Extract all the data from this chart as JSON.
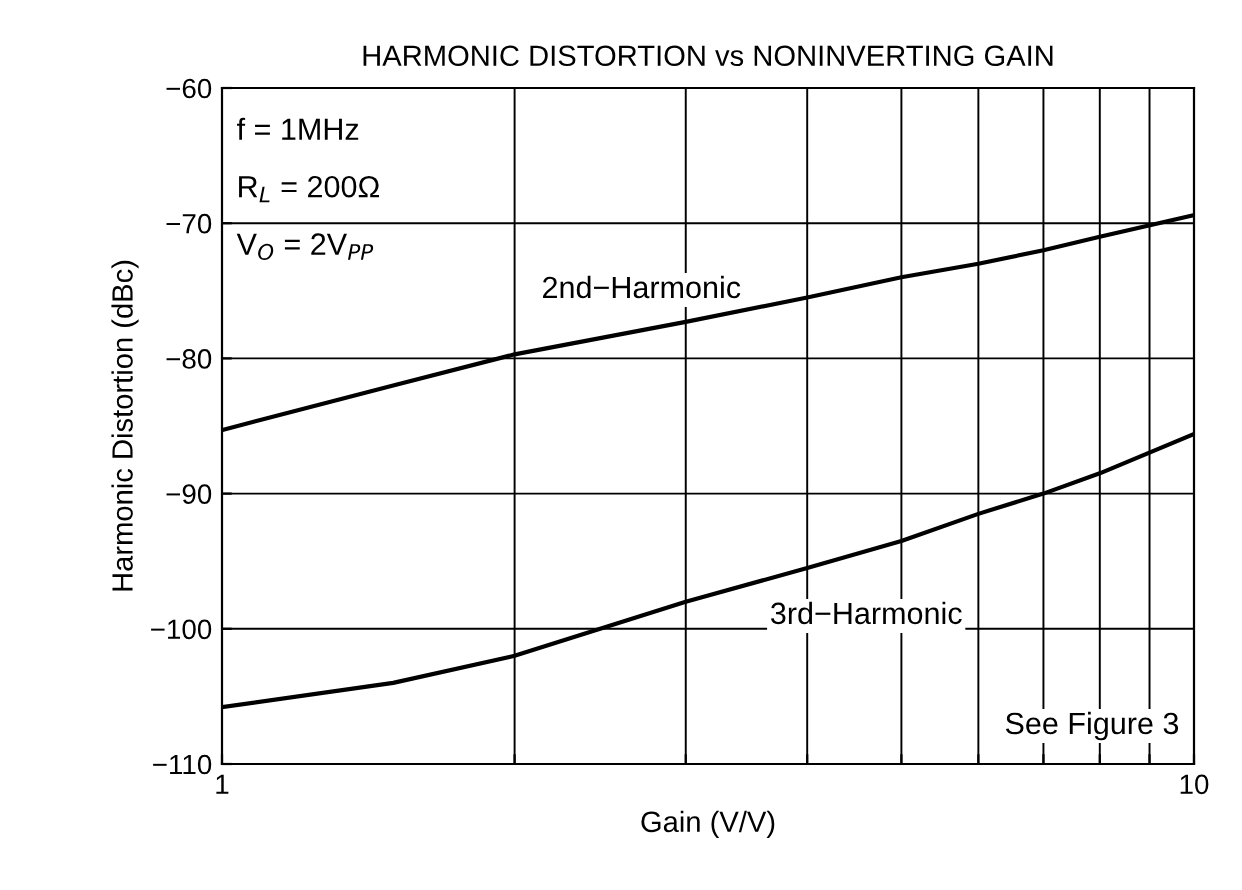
{
  "chart_data": {
    "type": "line",
    "title": "HARMONIC DISTORTION vs NONINVERTING GAIN",
    "xlabel": "Gain (V/V)",
    "ylabel": "Harmonic Distortion (dBc)",
    "log": "x",
    "grid": true,
    "legend": false,
    "marker": "none",
    "line_style": "solid",
    "xlim": [
      1,
      10
    ],
    "ylim": [
      -110,
      -60
    ],
    "xticks": [
      1,
      {
        "value": 2,
        "label": null
      },
      {
        "value": 3,
        "label": null
      },
      {
        "value": 4,
        "label": null
      },
      {
        "value": 5,
        "label": null
      },
      {
        "value": 6,
        "label": null
      },
      {
        "value": 7,
        "label": null
      },
      {
        "value": 8,
        "label": null
      },
      {
        "value": 9,
        "label": null
      },
      10
    ],
    "yticks": [
      {
        "value": -110,
        "label": "−110"
      },
      {
        "value": -100,
        "label": "−100"
      },
      {
        "value": -90,
        "label": "−90"
      },
      {
        "value": -80,
        "label": "−80"
      },
      {
        "value": -70,
        "label": "−70"
      },
      {
        "value": -60,
        "label": "−60"
      }
    ],
    "x": [
      1,
      1.5,
      2,
      3,
      4,
      5,
      6,
      7,
      8,
      10
    ],
    "series": [
      {
        "name": "2nd−Harmonic",
        "color": "#000000",
        "values": [
          -85.3,
          -82,
          -79.7,
          -77.3,
          -75.5,
          -74,
          -73,
          -72,
          -71,
          -69.4
        ]
      },
      {
        "name": "3rd−Harmonic",
        "color": "#000000",
        "values": [
          -105.8,
          -104,
          -102,
          -98,
          -95.5,
          -93.5,
          -91.5,
          -90,
          -88.5,
          -85.6
        ]
      }
    ],
    "annotations": [
      "f = 1MHz",
      "R$_{L}$ = 200Ω",
      "V$_{O}$ = 2V$_{PP}$",
      "See Figure 3"
    ]
  }
}
